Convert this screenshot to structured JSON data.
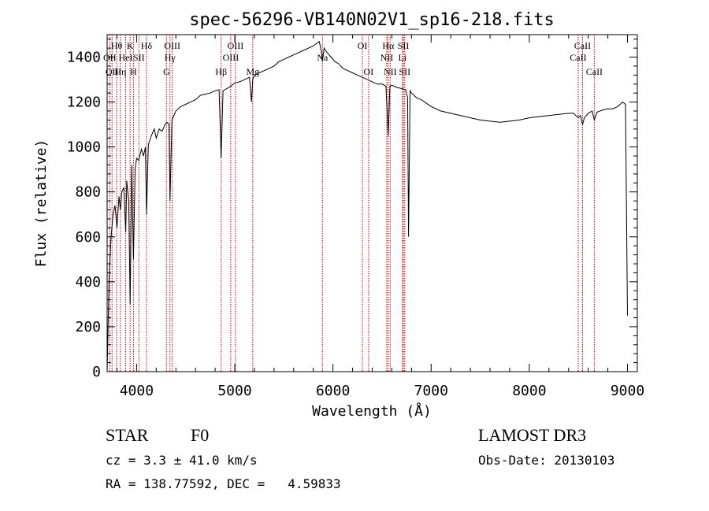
{
  "chart_data": {
    "type": "line",
    "title": "spec-56296-VB140N02V1_sp16-218.fits",
    "xlabel": "Wavelength (Å)",
    "ylabel": "Flux (relative)",
    "xlim": [
      3700,
      9100
    ],
    "ylim": [
      0,
      1500
    ],
    "xticks": [
      "4000",
      "5000",
      "6000",
      "7000",
      "8000",
      "9000"
    ],
    "yticks": [
      "0",
      "200",
      "400",
      "600",
      "800",
      "1000",
      "1200",
      "1400"
    ],
    "grid": false,
    "legend": "none",
    "series": [
      {
        "color": "#000000",
        "x": [
          3700,
          3720,
          3740,
          3760,
          3780,
          3800,
          3820,
          3835,
          3850,
          3870,
          3889,
          3900,
          3920,
          3934,
          3950,
          3968,
          3985,
          4000,
          4020,
          4050,
          4070,
          4090,
          4101,
          4120,
          4150,
          4180,
          4200,
          4230,
          4260,
          4290,
          4310,
          4330,
          4340,
          4360,
          4400,
          4450,
          4500,
          4550,
          4600,
          4650,
          4700,
          4750,
          4800,
          4840,
          4861,
          4880,
          4920,
          4960,
          5000,
          5050,
          5100,
          5150,
          5170,
          5183,
          5200,
          5250,
          5300,
          5350,
          5400,
          5450,
          5500,
          5550,
          5600,
          5650,
          5700,
          5750,
          5800,
          5830,
          5860,
          5880,
          5893,
          5910,
          5940,
          5980,
          6020,
          6060,
          6100,
          6150,
          6200,
          6250,
          6300,
          6350,
          6400,
          6450,
          6500,
          6540,
          6563,
          6580,
          6600,
          6650,
          6700,
          6740,
          6760,
          6770,
          6785,
          6800,
          6850,
          6900,
          7000,
          7100,
          7200,
          7300,
          7400,
          7500,
          7600,
          7700,
          7800,
          7900,
          8000,
          8100,
          8200,
          8300,
          8400,
          8450,
          8498,
          8520,
          8542,
          8560,
          8600,
          8640,
          8662,
          8690,
          8750,
          8800,
          8850,
          8900,
          8950,
          8980,
          9000
        ],
        "y": [
          0,
          420,
          600,
          700,
          740,
          640,
          780,
          720,
          800,
          820,
          620,
          850,
          760,
          300,
          920,
          500,
          900,
          950,
          940,
          990,
          960,
          1000,
          700,
          1010,
          1050,
          1080,
          1040,
          1080,
          1070,
          1100,
          1110,
          1100,
          760,
          1120,
          1160,
          1180,
          1190,
          1200,
          1210,
          1230,
          1235,
          1240,
          1250,
          1255,
          950,
          1250,
          1260,
          1270,
          1285,
          1290,
          1300,
          1310,
          1200,
          1300,
          1320,
          1330,
          1340,
          1350,
          1360,
          1380,
          1390,
          1400,
          1410,
          1420,
          1430,
          1440,
          1450,
          1460,
          1470,
          1430,
          1380,
          1440,
          1420,
          1400,
          1380,
          1370,
          1350,
          1340,
          1330,
          1320,
          1310,
          1300,
          1290,
          1280,
          1280,
          1270,
          1050,
          1270,
          1275,
          1265,
          1260,
          1255,
          1220,
          600,
          1250,
          1240,
          1220,
          1210,
          1180,
          1160,
          1150,
          1140,
          1130,
          1120,
          1115,
          1110,
          1115,
          1120,
          1130,
          1135,
          1140,
          1145,
          1150,
          1150,
          1130,
          1140,
          1100,
          1130,
          1150,
          1160,
          1120,
          1155,
          1165,
          1170,
          1170,
          1180,
          1200,
          1190,
          250
        ]
      }
    ],
    "lines": [
      {
        "wavelength": 3727,
        "labels": [
          "OII"
        ],
        "row": 2
      },
      {
        "wavelength": 3750,
        "labels": [
          "OII"
        ],
        "row": 3
      },
      {
        "wavelength": 3797,
        "labels": [
          "Hθ"
        ],
        "row": 1
      },
      {
        "wavelength": 3835,
        "labels": [
          "Hη"
        ],
        "row": 3
      },
      {
        "wavelength": 3889,
        "labels": [
          "HeI"
        ],
        "row": 2
      },
      {
        "wavelength": 3934,
        "labels": [
          "K"
        ],
        "row": 1
      },
      {
        "wavelength": 3968,
        "labels": [
          "H"
        ],
        "row": 3
      },
      {
        "wavelength": 4023,
        "labels": [
          "SII"
        ],
        "row": 2
      },
      {
        "wavelength": 4101,
        "labels": [
          "Hδ"
        ],
        "row": 1
      },
      {
        "wavelength": 4304,
        "labels": [
          "G"
        ],
        "row": 3
      },
      {
        "wavelength": 4340,
        "labels": [
          "Hγ"
        ],
        "row": 2
      },
      {
        "wavelength": 4363,
        "labels": [
          "OIII"
        ],
        "row": 1
      },
      {
        "wavelength": 4861,
        "labels": [
          "Hβ"
        ],
        "row": 3
      },
      {
        "wavelength": 4959,
        "labels": [
          "OIII"
        ],
        "row": 2
      },
      {
        "wavelength": 5007,
        "labels": [
          "OIII"
        ],
        "row": 1
      },
      {
        "wavelength": 5183,
        "labels": [
          "Mg"
        ],
        "row": 3
      },
      {
        "wavelength": 5893,
        "labels": [
          "Na"
        ],
        "row": 2
      },
      {
        "wavelength": 6300,
        "labels": [
          "OI"
        ],
        "row": 1
      },
      {
        "wavelength": 6363,
        "labels": [
          "OI"
        ],
        "row": 3
      },
      {
        "wavelength": 6548,
        "labels": [
          "NII"
        ],
        "row": 2
      },
      {
        "wavelength": 6563,
        "labels": [
          "Hα"
        ],
        "row": 1
      },
      {
        "wavelength": 6583,
        "labels": [
          "NII"
        ],
        "row": 3
      },
      {
        "wavelength": 6708,
        "labels": [
          "Li"
        ],
        "row": 2
      },
      {
        "wavelength": 6717,
        "labels": [
          "SII"
        ],
        "row": 1
      },
      {
        "wavelength": 6731,
        "labels": [
          "SII"
        ],
        "row": 3
      },
      {
        "wavelength": 8498,
        "labels": [
          "CaII"
        ],
        "row": 2
      },
      {
        "wavelength": 8542,
        "labels": [
          "CaII"
        ],
        "row": 1
      },
      {
        "wavelength": 8662,
        "labels": [
          "CaII"
        ],
        "row": 3
      }
    ]
  },
  "info": {
    "object_class": "STAR",
    "subclass": "F0",
    "redshift_text": "cz = 3.3 ± 41.0 km/s",
    "coords_text": "RA = 138.77592, DEC =   4.59833",
    "survey": "LAMOST DR3",
    "obs_date_text": "Obs-Date: 20130103"
  }
}
